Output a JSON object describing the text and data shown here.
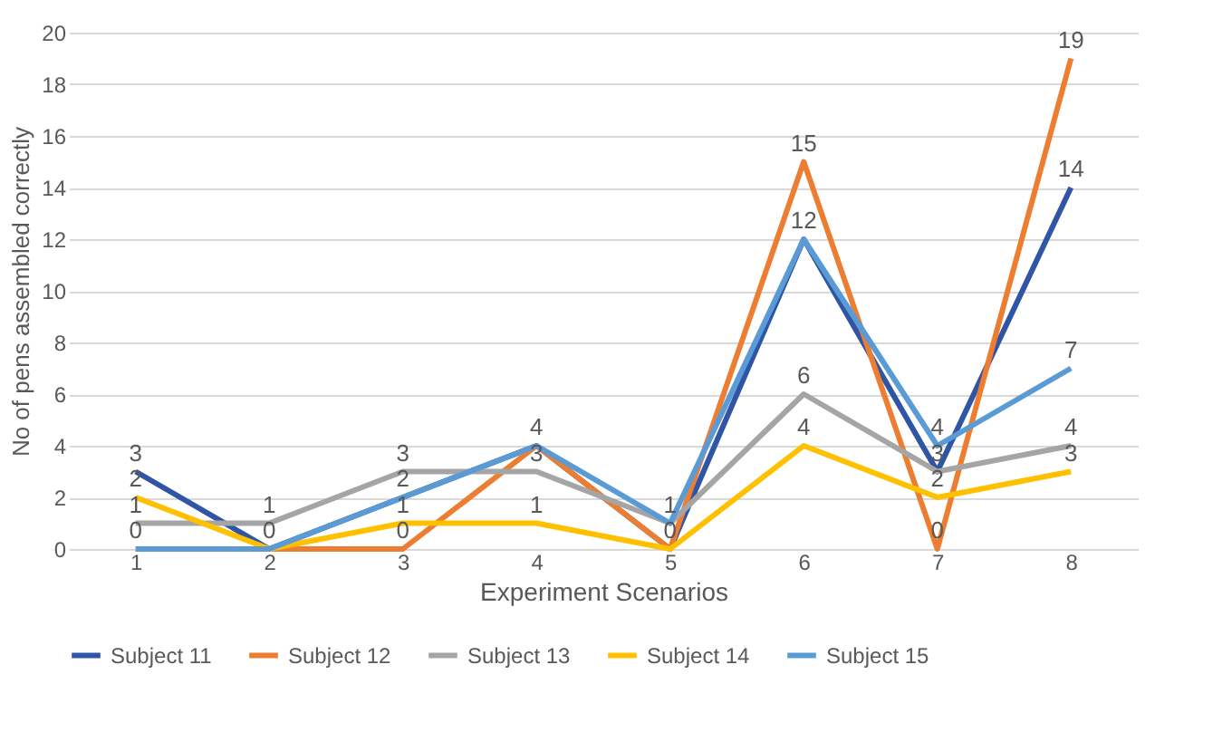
{
  "chart_data": {
    "type": "line",
    "xlabel": "Experiment Scenarios",
    "ylabel": "No of pens assembled correctly",
    "categories": [
      "1",
      "2",
      "3",
      "4",
      "5",
      "6",
      "7",
      "8"
    ],
    "series": [
      {
        "name": "Subject 11",
        "color": "#2f55a4",
        "values": [
          3,
          0,
          2,
          4,
          0,
          12,
          3,
          14
        ],
        "value_labels": [
          "3",
          "0",
          "2",
          "4",
          "0",
          "12",
          "3",
          "14"
        ]
      },
      {
        "name": "Subject 12",
        "color": "#ed7d31",
        "values": [
          0,
          0,
          0,
          4,
          0,
          15,
          0,
          19
        ],
        "value_labels": [
          "0",
          null,
          "0",
          null,
          null,
          "15",
          "0",
          "19"
        ]
      },
      {
        "name": "Subject 13",
        "color": "#a5a5a5",
        "values": [
          1,
          1,
          3,
          3,
          1,
          6,
          3,
          4
        ],
        "value_labels": [
          "1",
          "1",
          "3",
          "3",
          "1",
          "6",
          null,
          "4"
        ]
      },
      {
        "name": "Subject 14",
        "color": "#ffc000",
        "values": [
          2,
          0,
          1,
          1,
          0,
          4,
          2,
          3
        ],
        "value_labels": [
          "2",
          null,
          "1",
          "1",
          null,
          "4",
          "2",
          "3"
        ]
      },
      {
        "name": "Subject 15",
        "color": "#5b9bd5",
        "values": [
          0,
          0,
          2,
          4,
          1,
          12,
          4,
          7
        ],
        "value_labels": [
          null,
          null,
          null,
          null,
          null,
          null,
          "4",
          "7"
        ]
      }
    ],
    "ylim": [
      0,
      20
    ],
    "yticks": [
      0,
      2,
      4,
      6,
      8,
      10,
      12,
      14,
      16,
      18,
      20
    ],
    "grid": "y",
    "legend": "bottom",
    "marker": "none",
    "line_style": "solid"
  }
}
